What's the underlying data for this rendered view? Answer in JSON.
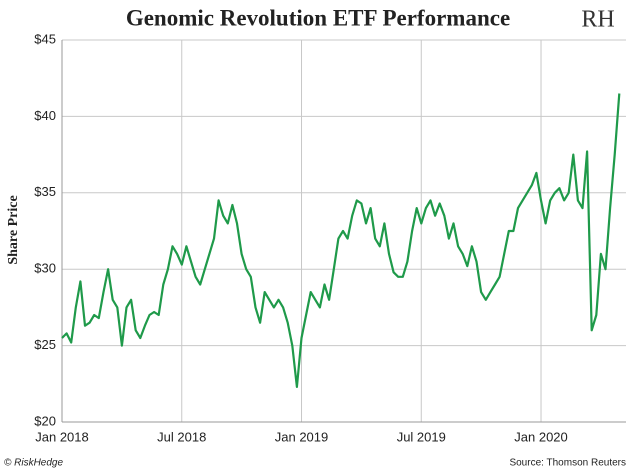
{
  "chart_data": {
    "type": "line",
    "title": "Genomic Revolution ETF Performance",
    "y_label": "Share Price",
    "color": "#1f9a4a",
    "grid": true,
    "categories": [
      "Jan 2018",
      null,
      null,
      null,
      null,
      null,
      null,
      null,
      null,
      null,
      null,
      null,
      null,
      null,
      null,
      null,
      null,
      null,
      null,
      null,
      null,
      null,
      null,
      null,
      null,
      null,
      "Jul 2018",
      null,
      null,
      null,
      null,
      null,
      null,
      null,
      null,
      null,
      null,
      null,
      null,
      null,
      null,
      null,
      null,
      null,
      null,
      null,
      null,
      null,
      null,
      null,
      null,
      null,
      "Jan 2019",
      null,
      null,
      null,
      null,
      null,
      null,
      null,
      null,
      null,
      null,
      null,
      null,
      null,
      null,
      null,
      null,
      null,
      null,
      null,
      null,
      null,
      null,
      null,
      null,
      null,
      "Jul 2019",
      null,
      null,
      null,
      null,
      null,
      null,
      null,
      null,
      null,
      null,
      null,
      null,
      null,
      null,
      null,
      null,
      null,
      null,
      null,
      null,
      null,
      null,
      null,
      null,
      null,
      "Jan 2020",
      null,
      null,
      null,
      null,
      null,
      null,
      null,
      null,
      null,
      null,
      null,
      null,
      null,
      null,
      null,
      null,
      null
    ],
    "values": [
      25.5,
      25.8,
      25.2,
      27.5,
      29.2,
      26.3,
      26.5,
      27,
      26.8,
      28.5,
      30,
      28,
      27.5,
      25,
      27.5,
      28,
      26,
      25.5,
      26.3,
      27,
      27.2,
      27,
      29,
      30,
      31.5,
      31,
      30.3,
      31.5,
      30.5,
      29.5,
      29,
      30,
      31,
      32,
      34.5,
      33.5,
      33,
      34.2,
      33,
      31,
      30,
      29.5,
      27.5,
      26.5,
      28.5,
      28,
      27.5,
      28,
      27.5,
      26.5,
      25,
      22.3,
      25.5,
      27,
      28.5,
      28,
      27.5,
      29,
      28,
      30,
      32,
      32.5,
      32,
      33.5,
      34.5,
      34.3,
      33,
      34,
      32,
      31.5,
      33,
      31,
      29.8,
      29.5,
      29.5,
      30.5,
      32.5,
      34,
      33,
      34,
      34.5,
      33.5,
      34.3,
      33.5,
      32,
      33,
      31.5,
      31,
      30.2,
      31.5,
      30.5,
      28.5,
      28,
      28.5,
      29,
      29.5,
      31,
      32.5,
      32.5,
      34,
      34.5,
      35,
      35.5,
      36.3,
      34.5,
      33,
      34.5,
      35,
      35.3,
      34.5,
      35,
      37.5,
      34.5,
      34,
      37.7,
      26,
      27,
      31,
      30,
      34,
      37.5,
      41.5
    ],
    "ylim": [
      20,
      45
    ],
    "yticks": [
      {
        "value": 20,
        "label": "$20"
      },
      {
        "value": 25,
        "label": "$25"
      },
      {
        "value": 30,
        "label": "$30"
      },
      {
        "value": 35,
        "label": "$35"
      },
      {
        "value": 40,
        "label": "$40"
      },
      {
        "value": 45,
        "label": "$45"
      }
    ]
  },
  "logo": "RH",
  "footer": {
    "left": "© RiskHedge",
    "right": "Source: Thomson Reuters"
  }
}
